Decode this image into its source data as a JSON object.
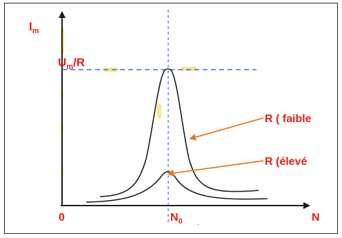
{
  "diagram": {
    "y_axis_label": {
      "main": "I",
      "sub": "m"
    },
    "x_axis_label": "N",
    "origin_label": "0",
    "peak_label": {
      "main": "U",
      "sub": "m",
      "rest": "/R"
    },
    "resonance_label": {
      "main": "N",
      "sub": "0"
    },
    "curve_low_r_label": "R ( faible",
    "curve_high_r_label": "R (élevé",
    "colors": {
      "axis": "#1a1a1a",
      "guide": "#3b6fc7",
      "label_red": "#e0201a",
      "arrow": "#e8781e",
      "highlight": "#f2d23a",
      "curve": "#1a1a1a"
    }
  }
}
